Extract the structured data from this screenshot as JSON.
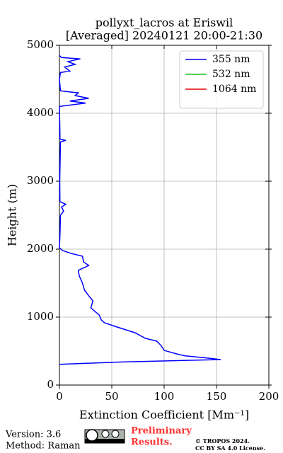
{
  "chart_data": {
    "type": "profile",
    "title": "pollyxt_lacros at Eriswil",
    "subtitle": "[Averaged] 20240121 20:00-21:30",
    "xlabel": "Extinction Coefficient [Mm⁻¹]",
    "ylabel": "Height (m)",
    "xlim": [
      0,
      200
    ],
    "xticks": [
      0,
      50,
      100,
      150,
      200
    ],
    "ylim": [
      0,
      5000
    ],
    "yticks": [
      0,
      1000,
      2000,
      3000,
      4000,
      5000
    ],
    "grid": true,
    "legend": "upper right",
    "y": [
      305,
      340,
      375,
      400,
      430,
      458,
      510,
      583,
      646,
      688,
      771,
      854,
      917,
      958,
      1031,
      1135,
      1240,
      1313,
      1396,
      1500,
      1604,
      1688,
      1760,
      1813,
      1896,
      1938,
      1979,
      2021,
      2200,
      2500,
      2560,
      2620,
      2660,
      2700,
      3000,
      3580,
      3600,
      3620,
      3700,
      4100,
      4150,
      4180,
      4220,
      4260,
      4300,
      4330,
      4500,
      4600,
      4620,
      4680,
      4720,
      4760,
      4800,
      4820,
      4850
    ],
    "series": [
      {
        "name": "355 nm",
        "color": "#0000ff",
        "values": [
          0,
          60,
          154,
          140,
          120,
          112,
          100,
          97,
          93,
          82,
          72,
          55,
          43,
          40,
          38,
          30,
          32,
          28,
          24,
          22,
          19,
          18,
          28,
          23,
          22,
          11,
          3,
          0,
          0.5,
          1,
          4,
          2,
          6,
          0.5,
          0.3,
          1,
          6,
          0.5,
          0.5,
          0,
          25,
          10,
          28,
          15,
          18,
          1,
          0,
          1,
          10,
          5,
          15,
          8,
          20,
          2,
          0
        ]
      },
      {
        "name": "532 nm",
        "color": "#1fbf1f"
      },
      {
        "name": "1064 nm",
        "color": "#e00000"
      }
    ]
  },
  "footer": {
    "version": "Version: 3.6",
    "method": "Method: Raman",
    "notice": [
      "Preliminary",
      "Results."
    ],
    "copyright": [
      "© TROPOS 2024.",
      "CC BY SA 4.0 License."
    ]
  }
}
